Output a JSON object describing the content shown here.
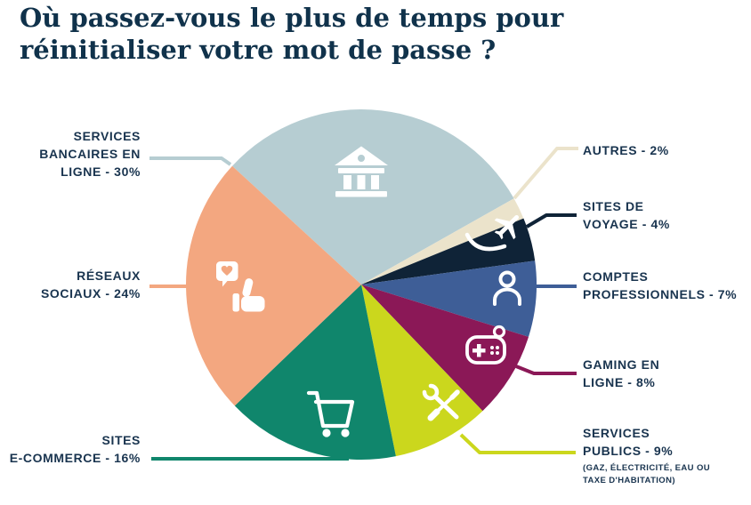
{
  "header": {
    "lines": [
      "Où passez-vous le plus de temps pour",
      "réinitialiser votre mot de passe ?"
    ]
  },
  "chart_data": {
    "type": "pie",
    "title": "Où passez-vous le plus de temps pour réinitialiser votre mot de passe ?",
    "unit": "%",
    "start_angle_deg": 137.4,
    "direction": "clockwise",
    "legend_position": "around-pie-with-leader-lines",
    "slices": [
      {
        "label": "Services bancaires en ligne",
        "value": 30,
        "color": "#b6cdd2",
        "icon": "bank-icon"
      },
      {
        "label": "Autres",
        "value": 2,
        "color": "#ebe3cb",
        "icon": null
      },
      {
        "label": "Sites de voyage",
        "value": 4,
        "color": "#0f2337",
        "icon": "plane-icon"
      },
      {
        "label": "Comptes professionnels",
        "value": 7,
        "color": "#3e5e97",
        "icon": "person-icon"
      },
      {
        "label": "Gaming en ligne",
        "value": 8,
        "color": "#8b1857",
        "icon": "gamepad-icon"
      },
      {
        "label": "Services publics",
        "value": 9,
        "color": "#cbd71d",
        "icon": "tools-icon",
        "note": "(gaz, électricité, eau ou taxe d'habitation)"
      },
      {
        "label": "Sites e-commerce",
        "value": 16,
        "color": "#10866c",
        "icon": "cart-icon"
      },
      {
        "label": "Réseaux sociaux",
        "value": 24,
        "color": "#f3a780",
        "icon": "social-icon"
      }
    ]
  },
  "labels": {
    "bancaires": {
      "lines": [
        "SERVICES",
        "BANCAIRES EN",
        "LIGNE - 30%"
      ]
    },
    "reseaux": {
      "lines": [
        "RÉSEAUX",
        "SOCIAUX - 24%"
      ]
    },
    "ecommerce": {
      "lines": [
        "SITES",
        "E-COMMERCE - 16%"
      ]
    },
    "autres": {
      "lines": [
        "AUTRES - 2%"
      ]
    },
    "voyage": {
      "lines": [
        "SITES DE",
        "VOYAGE - 4%"
      ]
    },
    "comptes": {
      "lines": [
        "COMPTES",
        "PROFESSIONNELS - 7%"
      ]
    },
    "gaming": {
      "lines": [
        "GAMING EN",
        "LIGNE - 8%"
      ]
    },
    "publics": {
      "lines": [
        "SERVICES",
        "PUBLICS - 9%"
      ],
      "note_lines": [
        "(GAZ, ÉLECTRICITÉ, EAU OU",
        "TAXE D'HABITATION)"
      ]
    }
  },
  "colors": {
    "title_text": "#10324b",
    "label_text": "#19344f",
    "background": "#ffffff",
    "icon": "#ffffff"
  }
}
